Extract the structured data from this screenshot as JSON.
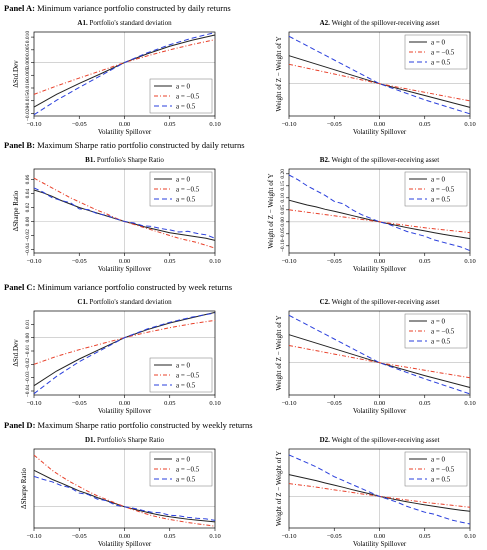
{
  "panels": [
    {
      "label": "Panel A:",
      "text": "Minimum variance portfolio constructed by daily returns"
    },
    {
      "label": "Panel B:",
      "text": "Maximum Sharpe ratio portfolio constructed by daily returns"
    },
    {
      "label": "Panel C:",
      "text": "Minimum variance portfolio constructed by week returns"
    },
    {
      "label": "Panel D:",
      "text": "Maximum Sharpe ratio portfolio constructed by weekly returns"
    }
  ],
  "colors": {
    "a0": "#222222",
    "a_neg05": "#e8402a",
    "a05": "#2a3fdc",
    "ref": "#bbbbbb"
  },
  "chart_data": [
    {
      "id": "A1",
      "type": "line",
      "title_bold": "A1.",
      "title": "Portfolio's standard deviation",
      "xlabel": "Volatility Spillover",
      "ylabel": "ΔStd.Dev",
      "xlim": [
        -0.1,
        0.1
      ],
      "ylim": [
        -0.021,
        0.012
      ],
      "xticks": [
        -0.1,
        -0.05,
        0.0,
        0.05,
        0.1
      ],
      "xtick_labels": [
        "−0.10",
        "−0.05",
        "0.00",
        "0.05",
        "0.10"
      ],
      "yticks": [
        -0.02,
        -0.015,
        -0.01,
        -0.005,
        0,
        0.005,
        0.01
      ],
      "ytick_labels": [
        "−0.020",
        "−0.015",
        "−0.010",
        "−0.005",
        "0.000",
        "0.005",
        "0.010"
      ],
      "legend_position": "bottom-right",
      "x": [
        -0.1,
        -0.075,
        -0.05,
        -0.025,
        0.0,
        0.025,
        0.05,
        0.075,
        0.1
      ],
      "series": [
        {
          "name": "a = 0",
          "style": "solid",
          "color_key": "a0",
          "values": [
            -0.0175,
            -0.0125,
            -0.0082,
            -0.0042,
            0.0,
            0.0034,
            0.0064,
            0.0088,
            0.0108
          ]
        },
        {
          "name": "a = −0.5",
          "style": "dashdot",
          "color_key": "a_neg05",
          "values": [
            -0.0125,
            -0.0092,
            -0.0061,
            -0.0031,
            0.0,
            0.0026,
            0.005,
            0.0071,
            0.009
          ]
        },
        {
          "name": "a = 0.5",
          "style": "dashed",
          "color_key": "a05",
          "values": [
            -0.0205,
            -0.0148,
            -0.0098,
            -0.0049,
            0.0,
            0.0038,
            0.007,
            0.0096,
            0.0118
          ]
        }
      ]
    },
    {
      "id": "A2",
      "type": "line",
      "title_bold": "A2.",
      "title": "Weight of the spillover-receiving asset",
      "xlabel": "Volatility Spillover",
      "ylabel": "Weight of Z − Weight of Y",
      "xlim": [
        -0.1,
        0.1
      ],
      "ylim": [
        -0.15,
        0.24
      ],
      "xticks": [
        -0.1,
        -0.05,
        0.0,
        0.05,
        0.1
      ],
      "xtick_labels": [
        "−0.10",
        "−0.05",
        "0.00",
        "0.05",
        "0.10"
      ],
      "yticks": [],
      "ytick_labels": [],
      "legend_position": "top-right",
      "x": [
        -0.1,
        -0.05,
        0.0,
        0.05,
        0.1
      ],
      "series": [
        {
          "name": "a = 0",
          "style": "solid",
          "color_key": "a0",
          "values": [
            0.13,
            0.065,
            0.0,
            -0.055,
            -0.11
          ]
        },
        {
          "name": "a = −0.5",
          "style": "dashdot",
          "color_key": "a_neg05",
          "values": [
            0.09,
            0.045,
            0.0,
            -0.04,
            -0.08
          ]
        },
        {
          "name": "a = 0.5",
          "style": "dashed",
          "color_key": "a05",
          "values": [
            0.22,
            0.11,
            0.0,
            -0.075,
            -0.14
          ]
        }
      ]
    },
    {
      "id": "B1",
      "type": "line",
      "title_bold": "B1.",
      "title": "Portfolio's Sharpe Ratio",
      "xlabel": "Volatility Spillover",
      "ylabel": "ΔSharpe Ratio",
      "xlim": [
        -0.1,
        0.1
      ],
      "ylim": [
        -0.045,
        0.075
      ],
      "xticks": [
        -0.1,
        -0.05,
        0.0,
        0.05,
        0.1
      ],
      "xtick_labels": [
        "−0.10",
        "−0.05",
        "0.00",
        "0.05",
        "0.10"
      ],
      "yticks": [
        -0.04,
        -0.02,
        0.0,
        0.02,
        0.04,
        0.06
      ],
      "ytick_labels": [
        "−0.04",
        "−0.02",
        "0.00",
        "0.02",
        "0.04",
        "0.06"
      ],
      "legend_position": "top-right",
      "x": [
        -0.1,
        -0.09,
        -0.08,
        -0.07,
        -0.06,
        -0.05,
        -0.04,
        -0.03,
        -0.02,
        -0.01,
        0.0,
        0.01,
        0.02,
        0.03,
        0.04,
        0.05,
        0.06,
        0.07,
        0.08,
        0.09,
        0.1
      ],
      "series": [
        {
          "name": "a = 0",
          "style": "solid",
          "color_key": "a0",
          "values": [
            0.045,
            0.041,
            0.036,
            0.03,
            0.025,
            0.02,
            0.016,
            0.012,
            0.008,
            0.004,
            0.0,
            -0.003,
            -0.007,
            -0.01,
            -0.013,
            -0.016,
            -0.018,
            -0.02,
            -0.022,
            -0.024,
            -0.027
          ]
        },
        {
          "name": "a = −0.5",
          "style": "dashdot",
          "color_key": "a_neg05",
          "values": [
            0.062,
            0.055,
            0.048,
            0.041,
            0.034,
            0.028,
            0.022,
            0.016,
            0.011,
            0.005,
            0.0,
            -0.004,
            -0.008,
            -0.012,
            -0.016,
            -0.02,
            -0.024,
            -0.027,
            -0.03,
            -0.034,
            -0.038
          ]
        },
        {
          "name": "a = 0.5",
          "style": "dashed",
          "color_key": "a05",
          "values": [
            0.048,
            0.042,
            0.034,
            0.03,
            0.027,
            0.018,
            0.017,
            0.011,
            0.009,
            0.004,
            0.0,
            -0.002,
            -0.006,
            -0.007,
            -0.01,
            -0.012,
            -0.015,
            -0.014,
            -0.017,
            -0.019,
            -0.024
          ]
        }
      ]
    },
    {
      "id": "B2",
      "type": "line",
      "title_bold": "B2.",
      "title": "Weight of the spillover-receiving asset",
      "xlabel": "Volatility Spillover",
      "ylabel": "Weight of Z − Weight of Y",
      "xlim": [
        -0.1,
        0.1
      ],
      "ylim": [
        -0.13,
        0.22
      ],
      "xticks": [
        -0.1,
        -0.05,
        0.0,
        0.05,
        0.1
      ],
      "xtick_labels": [
        "−0.10",
        "−0.05",
        "0.00",
        "0.05",
        "0.10"
      ],
      "yticks": [
        -0.1,
        -0.05,
        0.0,
        0.05,
        0.1,
        0.15,
        0.2
      ],
      "ytick_labels": [
        "−0.10",
        "−0.05",
        "0.00",
        "0.05",
        "0.10",
        "0.15",
        "0.20"
      ],
      "legend_position": "top-right",
      "x": [
        -0.1,
        -0.09,
        -0.08,
        -0.07,
        -0.06,
        -0.05,
        -0.04,
        -0.03,
        -0.02,
        -0.01,
        0.0,
        0.01,
        0.02,
        0.03,
        0.04,
        0.05,
        0.06,
        0.07,
        0.08,
        0.09,
        0.1
      ],
      "series": [
        {
          "name": "a = 0",
          "style": "solid",
          "color_key": "a0",
          "values": [
            0.09,
            0.08,
            0.07,
            0.062,
            0.052,
            0.044,
            0.035,
            0.026,
            0.017,
            0.008,
            0.0,
            -0.008,
            -0.016,
            -0.024,
            -0.031,
            -0.038,
            -0.045,
            -0.052,
            -0.058,
            -0.064,
            -0.07
          ]
        },
        {
          "name": "a = −0.5",
          "style": "dashdot",
          "color_key": "a_neg05",
          "values": [
            0.05,
            0.045,
            0.04,
            0.035,
            0.03,
            0.025,
            0.02,
            0.015,
            0.01,
            0.005,
            0.0,
            -0.005,
            -0.01,
            -0.015,
            -0.02,
            -0.025,
            -0.029,
            -0.033,
            -0.037,
            -0.041,
            -0.045
          ]
        },
        {
          "name": "a = 0.5",
          "style": "dashed",
          "color_key": "a05",
          "values": [
            0.195,
            0.175,
            0.15,
            0.13,
            0.11,
            0.085,
            0.075,
            0.05,
            0.03,
            0.015,
            0.0,
            -0.01,
            -0.025,
            -0.04,
            -0.05,
            -0.06,
            -0.075,
            -0.085,
            -0.095,
            -0.105,
            -0.12
          ]
        }
      ]
    },
    {
      "id": "C1",
      "type": "line",
      "title_bold": "C1.",
      "title": "Portfolio's standard deviation",
      "xlabel": "Volatility Spillover",
      "ylabel": "ΔStd.Dev",
      "xlim": [
        -0.1,
        0.1
      ],
      "ylim": [
        -0.043,
        0.02
      ],
      "xticks": [
        -0.1,
        -0.05,
        0.0,
        0.05,
        0.1
      ],
      "xtick_labels": [
        "−0.10",
        "−0.05",
        "0.00",
        "0.05",
        "0.10"
      ],
      "yticks": [
        -0.04,
        -0.03,
        -0.02,
        -0.01,
        0.0,
        0.01
      ],
      "ytick_labels": [
        "−0.04",
        "−0.03",
        "−0.02",
        "−0.01",
        "0.00",
        "0.01"
      ],
      "legend_position": "bottom-right",
      "x": [
        -0.1,
        -0.075,
        -0.05,
        -0.025,
        0.0,
        0.025,
        0.05,
        0.075,
        0.1
      ],
      "series": [
        {
          "name": "a = 0",
          "style": "solid",
          "color_key": "a0",
          "values": [
            -0.036,
            -0.025,
            -0.016,
            -0.008,
            0.0,
            0.006,
            0.011,
            0.015,
            0.019
          ]
        },
        {
          "name": "a = −0.5",
          "style": "dashdot",
          "color_key": "a_neg05",
          "values": [
            -0.02,
            -0.014,
            -0.009,
            -0.0045,
            0.0,
            0.004,
            0.0075,
            0.0105,
            0.013
          ]
        },
        {
          "name": "a = 0.5",
          "style": "dashed",
          "color_key": "a05",
          "values": [
            -0.042,
            -0.029,
            -0.018,
            -0.009,
            0.0,
            0.0065,
            0.0115,
            0.0155,
            0.0185
          ]
        }
      ]
    },
    {
      "id": "C2",
      "type": "line",
      "title_bold": "C2.",
      "title": "Weight of the spillover-receiving asset",
      "xlabel": "Volatility Spillover",
      "ylabel": "Weight of Z − Weight of Y",
      "xlim": [
        -0.1,
        0.1
      ],
      "ylim": [
        -0.15,
        0.24
      ],
      "xticks": [
        -0.1,
        -0.05,
        0.0,
        0.05,
        0.1
      ],
      "xtick_labels": [
        "−0.10",
        "−0.05",
        "0.00",
        "0.05",
        "0.10"
      ],
      "yticks": [],
      "ytick_labels": [],
      "legend_position": "top-right",
      "x": [
        -0.1,
        -0.05,
        0.0,
        0.05,
        0.1
      ],
      "series": [
        {
          "name": "a = 0",
          "style": "solid",
          "color_key": "a0",
          "values": [
            0.13,
            0.065,
            0.0,
            -0.06,
            -0.115
          ]
        },
        {
          "name": "a = −0.5",
          "style": "dashdot",
          "color_key": "a_neg05",
          "values": [
            0.08,
            0.04,
            0.0,
            -0.035,
            -0.07
          ]
        },
        {
          "name": "a = 0.5",
          "style": "dashed",
          "color_key": "a05",
          "values": [
            0.22,
            0.11,
            0.0,
            -0.075,
            -0.145
          ]
        }
      ]
    },
    {
      "id": "D1",
      "type": "line",
      "title_bold": "D1.",
      "title": "Portfolio's Sharpe Ratio",
      "xlabel": "Volatility Spillover",
      "ylabel": "ΔSharpe Ratio",
      "xlim": [
        -0.1,
        0.1
      ],
      "ylim": [
        -0.07,
        0.19
      ],
      "xticks": [
        -0.1,
        -0.05,
        0.0,
        0.05,
        0.1
      ],
      "xtick_labels": [
        "−0.10",
        "−0.05",
        "0.00",
        "0.05",
        "0.10"
      ],
      "yticks": [],
      "ytick_labels": [],
      "legend_position": "top-right",
      "x": [
        -0.1,
        -0.09,
        -0.08,
        -0.07,
        -0.06,
        -0.05,
        -0.04,
        -0.03,
        -0.02,
        -0.01,
        0.0,
        0.01,
        0.02,
        0.03,
        0.04,
        0.05,
        0.06,
        0.07,
        0.08,
        0.09,
        0.1
      ],
      "series": [
        {
          "name": "a = 0",
          "style": "solid",
          "color_key": "a0",
          "values": [
            0.12,
            0.105,
            0.09,
            0.078,
            0.065,
            0.052,
            0.042,
            0.03,
            0.02,
            0.01,
            0.0,
            -0.008,
            -0.015,
            -0.022,
            -0.028,
            -0.033,
            -0.037,
            -0.041,
            -0.044,
            -0.047,
            -0.05
          ]
        },
        {
          "name": "a = −0.5",
          "style": "dashdot",
          "color_key": "a_neg05",
          "values": [
            0.17,
            0.145,
            0.12,
            0.1,
            0.082,
            0.066,
            0.05,
            0.036,
            0.024,
            0.012,
            0.0,
            -0.01,
            -0.02,
            -0.029,
            -0.036,
            -0.042,
            -0.047,
            -0.052,
            -0.056,
            -0.06,
            -0.064
          ]
        },
        {
          "name": "a = 0.5",
          "style": "dashed",
          "color_key": "a05",
          "values": [
            0.1,
            0.09,
            0.082,
            0.07,
            0.063,
            0.045,
            0.04,
            0.025,
            0.02,
            0.005,
            0.0,
            -0.005,
            -0.012,
            -0.018,
            -0.02,
            -0.028,
            -0.03,
            -0.035,
            -0.038,
            -0.04,
            -0.045
          ]
        }
      ]
    },
    {
      "id": "D2",
      "type": "line",
      "title_bold": "D2.",
      "title": "Weight of the spillover-receiving asset",
      "xlabel": "Volatility Spillover",
      "ylabel": "Weight of Z − Weight of Y",
      "xlim": [
        -0.1,
        0.1
      ],
      "ylim": [
        -0.16,
        0.24
      ],
      "xticks": [
        -0.1,
        -0.05,
        0.0,
        0.05,
        0.1
      ],
      "xtick_labels": [
        "−0.10",
        "−0.05",
        "0.00",
        "0.05",
        "0.10"
      ],
      "yticks": [],
      "ytick_labels": [],
      "legend_position": "top-right",
      "x": [
        -0.1,
        -0.09,
        -0.08,
        -0.07,
        -0.06,
        -0.05,
        -0.04,
        -0.03,
        -0.02,
        -0.01,
        0.0,
        0.01,
        0.02,
        0.03,
        0.04,
        0.05,
        0.06,
        0.07,
        0.08,
        0.09,
        0.1
      ],
      "series": [
        {
          "name": "a = 0",
          "style": "solid",
          "color_key": "a0",
          "values": [
            0.11,
            0.1,
            0.09,
            0.08,
            0.068,
            0.057,
            0.046,
            0.034,
            0.023,
            0.012,
            0.0,
            -0.009,
            -0.018,
            -0.027,
            -0.035,
            -0.043,
            -0.05,
            -0.057,
            -0.064,
            -0.07,
            -0.075
          ]
        },
        {
          "name": "a = −0.5",
          "style": "dashdot",
          "color_key": "a_neg05",
          "values": [
            0.065,
            0.059,
            0.053,
            0.047,
            0.04,
            0.033,
            0.027,
            0.02,
            0.013,
            0.007,
            0.0,
            -0.006,
            -0.012,
            -0.018,
            -0.024,
            -0.03,
            -0.035,
            -0.04,
            -0.045,
            -0.05,
            -0.055
          ]
        },
        {
          "name": "a = 0.5",
          "style": "dashed",
          "color_key": "a05",
          "values": [
            0.21,
            0.19,
            0.17,
            0.15,
            0.125,
            0.1,
            0.08,
            0.06,
            0.04,
            0.02,
            0.0,
            -0.015,
            -0.03,
            -0.05,
            -0.065,
            -0.08,
            -0.09,
            -0.105,
            -0.12,
            -0.13,
            -0.14
          ]
        }
      ]
    }
  ]
}
